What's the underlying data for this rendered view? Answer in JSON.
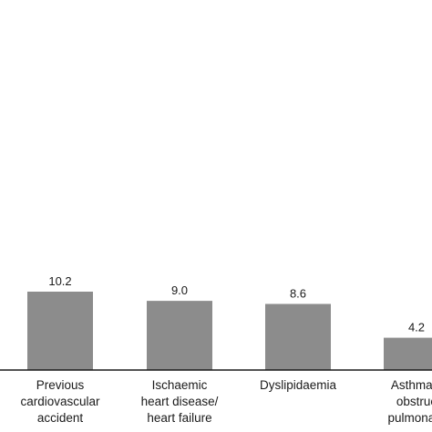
{
  "chart_data": {
    "type": "bar",
    "categories": [
      [
        "Previous",
        "cardiovascular",
        "accident"
      ],
      [
        "Ischaemic",
        "heart disease/",
        "heart failure"
      ],
      [
        "Dyslipidaemia"
      ],
      [
        "Asthma/c",
        "obstruc",
        "pulmonary"
      ]
    ],
    "values": [
      10.2,
      9.0,
      8.6,
      4.2
    ],
    "value_labels": [
      "10.2",
      "9.0",
      "8.6",
      "4.2"
    ],
    "title": "",
    "xlabel": "",
    "ylabel": "",
    "ylim": [
      0,
      10.2
    ],
    "grid": false,
    "colors": {
      "bar": "#8c8c8c",
      "axis": "#1a1a1a",
      "text": "#1a1a1a"
    }
  }
}
